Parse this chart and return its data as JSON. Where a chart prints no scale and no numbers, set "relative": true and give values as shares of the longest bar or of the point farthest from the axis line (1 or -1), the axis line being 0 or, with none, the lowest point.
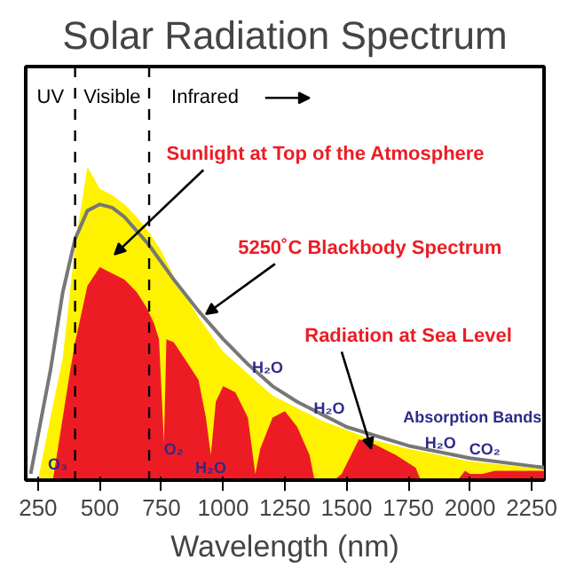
{
  "chart_data": {
    "type": "area",
    "title": "Solar Radiation Spectrum",
    "xlabel": "Wavelength (nm)",
    "relative": true,
    "xlim": [
      200,
      2300
    ],
    "xticks": [
      250,
      500,
      750,
      1000,
      1250,
      1500,
      1750,
      2000,
      2250
    ],
    "grid": false,
    "series": [
      {
        "color": "#fff200",
        "x": [
          250,
          300,
          350,
          400,
          450,
          500,
          550,
          600,
          650,
          700,
          750,
          800,
          900,
          1000,
          1100,
          1200,
          1300,
          1400,
          1500,
          1600,
          1750,
          2000,
          2250,
          2300
        ],
        "values": [
          0,
          0.2,
          0.39,
          0.75,
          1.0,
          0.93,
          0.91,
          0.88,
          0.84,
          0.79,
          0.73,
          0.65,
          0.52,
          0.41,
          0.34,
          0.27,
          0.23,
          0.19,
          0.16,
          0.13,
          0.1,
          0.06,
          0.04,
          0.035
        ]
      },
      {
        "color": "#ed1c24",
        "x": [
          310,
          350,
          380,
          400,
          450,
          500,
          550,
          600,
          650,
          690,
          720,
          740,
          760,
          770,
          800,
          850,
          900,
          930,
          950,
          970,
          1000,
          1050,
          1100,
          1130,
          1150,
          1200,
          1250,
          1300,
          1350,
          1370,
          1450,
          1480,
          1550,
          1600,
          1700,
          1780,
          1800,
          1950,
          1980,
          2000,
          2050,
          2100,
          2250,
          2300
        ],
        "values": [
          0,
          0.2,
          0.35,
          0.44,
          0.62,
          0.68,
          0.66,
          0.64,
          0.6,
          0.55,
          0.5,
          0.45,
          0.12,
          0.45,
          0.44,
          0.38,
          0.32,
          0.2,
          0.08,
          0.25,
          0.3,
          0.28,
          0.2,
          0.02,
          0.1,
          0.2,
          0.22,
          0.17,
          0.08,
          0,
          0,
          0.02,
          0.13,
          0.12,
          0.08,
          0.04,
          0,
          0,
          0.03,
          0.02,
          0.02,
          0.03,
          0.03,
          0.03
        ]
      },
      {
        "type": "line",
        "color": "#777777",
        "x": [
          220,
          300,
          350,
          400,
          450,
          500,
          550,
          600,
          700,
          800,
          900,
          1000,
          1100,
          1200,
          1300,
          1400,
          1500,
          1750,
          2000,
          2250,
          2300
        ],
        "values": [
          0.02,
          0.35,
          0.6,
          0.77,
          0.86,
          0.88,
          0.87,
          0.84,
          0.75,
          0.64,
          0.54,
          0.45,
          0.37,
          0.3,
          0.25,
          0.21,
          0.17,
          0.11,
          0.07,
          0.045,
          0.04
        ]
      }
    ],
    "ref_lines": [
      {
        "axis": "x",
        "value": 400,
        "color": "#000000",
        "line_style": "dashed"
      },
      {
        "axis": "x",
        "value": 700,
        "color": "#000000",
        "line_style": "dashed"
      }
    ],
    "annotations": [
      "UV",
      "Visible",
      "Infrared",
      "Sunlight at Top of the Atmosphere",
      "5250˚C Blackbody Spectrum",
      "Radiation at Sea Level",
      "O₃",
      "O₂",
      "H₂O",
      "H₂O",
      "H₂O",
      "H₂O",
      "CO₂",
      "Absorption Bands"
    ]
  }
}
